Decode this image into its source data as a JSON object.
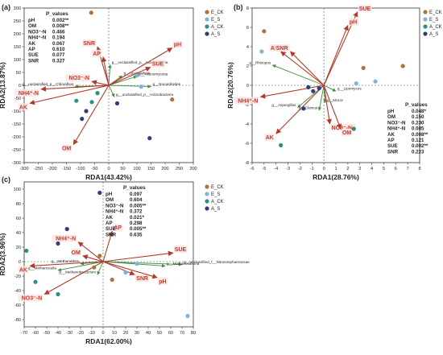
{
  "legend_entries": [
    {
      "name": "E_CK",
      "color": "#b0743a"
    },
    {
      "name": "E_S",
      "color": "#7fb3dc"
    },
    {
      "name": "A_CK",
      "color": "#2f8f83"
    },
    {
      "name": "A_S",
      "color": "#2e3f7a"
    }
  ],
  "colors": {
    "env_arrow": "#b23a2a",
    "taxa_arrow": "#3f8f3f",
    "env_label_bg": "#fde3e3"
  },
  "chart_data": [
    {
      "type": "scatter",
      "panel_label": "(a)",
      "xlabel": "RDA1(43.42%)",
      "ylabel": "RDA2(13.87%)",
      "xlim": [
        -300,
        300
      ],
      "ylim": [
        -300,
        300
      ],
      "xticks": [
        -300,
        -250,
        -200,
        -150,
        -100,
        -50,
        0,
        50,
        100,
        150,
        200,
        250,
        300
      ],
      "yticks": [
        -300,
        -250,
        -200,
        -150,
        -100,
        -50,
        0,
        50,
        100,
        150,
        200,
        250,
        300
      ],
      "table_header": "P_values",
      "table": [
        {
          "var": "pH",
          "p": "0.002**"
        },
        {
          "var": "OM",
          "p": "0.008**"
        },
        {
          "var": "NO3⁻-N",
          "p": "0.466"
        },
        {
          "var": "NH4⁺-N",
          "p": "0.194"
        },
        {
          "var": "AK",
          "p": "0.067"
        },
        {
          "var": "AP",
          "p": "0.610"
        },
        {
          "var": "SUE",
          "p": "0.077"
        },
        {
          "var": "SNR",
          "p": "0.327"
        }
      ],
      "env": [
        {
          "label": "pH",
          "x": 225,
          "y": 145
        },
        {
          "label": "SUE",
          "x": 148,
          "y": 70
        },
        {
          "label": "SNR",
          "x": -40,
          "y": 150
        },
        {
          "label": "AP",
          "x": -20,
          "y": 110
        },
        {
          "label": "NO3⁻-N",
          "x": -60,
          "y": 15
        },
        {
          "label": "NH4⁺-N",
          "x": -240,
          "y": -15
        },
        {
          "label": "AK",
          "x": -280,
          "y": -70
        },
        {
          "label": "OM",
          "x": -125,
          "y": -230
        }
      ],
      "taxa": [
        {
          "label": "g__unclassified_p__Acidobacteria",
          "x": 5,
          "y": 80
        },
        {
          "label": "g__unclassified",
          "x": 48,
          "y": 37
        },
        {
          "label": "g__Actinomycetia",
          "x": 100,
          "y": 35
        },
        {
          "label": "g__unclassified_p__Chloroflexi",
          "x": -120,
          "y": -5
        },
        {
          "label": "g__Nocardioides",
          "x": 150,
          "y": -5
        },
        {
          "label": "g__unclassified_p__Actinobacteria",
          "x": 20,
          "y": -45
        }
      ],
      "points": [
        {
          "group": "E_CK",
          "x": -62,
          "y": 282
        },
        {
          "group": "E_CK",
          "x": 225,
          "y": -55
        },
        {
          "group": "E_S",
          "x": 100,
          "y": 38
        },
        {
          "group": "E_S",
          "x": 115,
          "y": -5
        },
        {
          "group": "A_CK",
          "x": -40,
          "y": -30
        },
        {
          "group": "A_CK",
          "x": -60,
          "y": -65
        },
        {
          "group": "A_CK",
          "x": -115,
          "y": -60
        },
        {
          "group": "A_S",
          "x": -80,
          "y": -100
        },
        {
          "group": "A_S",
          "x": -95,
          "y": -130
        },
        {
          "group": "A_S",
          "x": 30,
          "y": -70
        },
        {
          "group": "A_S",
          "x": 145,
          "y": -205
        }
      ]
    },
    {
      "type": "scatter",
      "panel_label": "(b)",
      "xlabel": "RDA1(28.76%)",
      "ylabel": "RDA2(20.76%)",
      "xlim": [
        -6,
        8
      ],
      "ylim": [
        -8,
        8
      ],
      "xticks": [
        -6,
        -5,
        -4,
        -3,
        -2,
        -1,
        0,
        1,
        2,
        3,
        4,
        5,
        6,
        7,
        8
      ],
      "yticks": [
        -8,
        -6,
        -4,
        -2,
        0,
        2,
        4,
        6,
        8
      ],
      "table_header": "P_values",
      "table": [
        {
          "var": "pH",
          "p": "0.048*"
        },
        {
          "var": "OM",
          "p": "0.150"
        },
        {
          "var": "NO3⁻-N",
          "p": "0.230"
        },
        {
          "var": "NH4⁺-N",
          "p": "0.085"
        },
        {
          "var": "AK",
          "p": "0.008**"
        },
        {
          "var": "AP",
          "p": "0.121"
        },
        {
          "var": "SUE",
          "p": "0.002**"
        },
        {
          "var": "SNR",
          "p": "0.223"
        }
      ],
      "env": [
        {
          "label": "SUE",
          "x": 2.8,
          "y": 7.6
        },
        {
          "label": "pH",
          "x": 2.0,
          "y": 6.2
        },
        {
          "label": "AP",
          "x": -3.6,
          "y": 3.5
        },
        {
          "label": "SNR",
          "x": -2.8,
          "y": 3.5
        },
        {
          "label": "NH4⁺-N",
          "x": -5.3,
          "y": -1.2
        },
        {
          "label": "AK",
          "x": -4.0,
          "y": -5.0
        },
        {
          "label": "NO3⁻-N",
          "x": 0.5,
          "y": -4.0
        },
        {
          "label": "OM",
          "x": 1.4,
          "y": -4.5
        }
      ],
      "taxa": [
        {
          "label": "g__Rhizopus",
          "x": -4.3,
          "y": 2.1
        },
        {
          "label": "g__Lipomyces",
          "x": 1.0,
          "y": -0.6
        },
        {
          "label": "g__Mucor",
          "x": 0.1,
          "y": -1.8
        },
        {
          "label": "g__Glomus",
          "x": -0.4,
          "y": -2.6
        },
        {
          "label": "g__Aspergillus",
          "x": -2.2,
          "y": -2.3
        }
      ],
      "points": [
        {
          "group": "E_CK",
          "x": -5.0,
          "y": 5.6
        },
        {
          "group": "E_CK",
          "x": 3.3,
          "y": 1.8
        },
        {
          "group": "E_CK",
          "x": 6.6,
          "y": 2.0
        },
        {
          "group": "E_S",
          "x": -5.2,
          "y": 3.5
        },
        {
          "group": "E_S",
          "x": 4.3,
          "y": 0.4
        },
        {
          "group": "E_S",
          "x": 2.7,
          "y": 0.2
        },
        {
          "group": "A_CK",
          "x": -3.6,
          "y": -6.2
        },
        {
          "group": "A_CK",
          "x": 2.5,
          "y": -4.5
        },
        {
          "group": "A_S",
          "x": -0.9,
          "y": -0.6
        },
        {
          "group": "A_S",
          "x": -1.3,
          "y": -0.2
        },
        {
          "group": "A_S",
          "x": -0.4,
          "y": -0.3
        },
        {
          "group": "A_S",
          "x": -1.7,
          "y": -2.4
        }
      ]
    },
    {
      "type": "scatter",
      "panel_label": "(c)",
      "xlabel": "RDA1(62.00%)",
      "ylabel": "RDA2(3.96%)",
      "xlim": [
        -70,
        80
      ],
      "ylim": [
        -90,
        110
      ],
      "xticks": [
        -70,
        -60,
        -50,
        -40,
        -30,
        -20,
        -10,
        0,
        10,
        20,
        30,
        40,
        50,
        60,
        70,
        80
      ],
      "yticks": [
        -80,
        -60,
        -40,
        -20,
        0,
        20,
        40,
        60,
        80,
        100
      ],
      "table_header": "P_values",
      "table": [
        {
          "var": "pH",
          "p": "0.097"
        },
        {
          "var": "OM",
          "p": "0.604"
        },
        {
          "var": "NO3⁻-N",
          "p": "0.005**"
        },
        {
          "var": "NH4⁺-N",
          "p": "0.372"
        },
        {
          "var": "AK",
          "p": "0.021*"
        },
        {
          "var": "AP",
          "p": "0.298"
        },
        {
          "var": "SUE",
          "p": "0.005**"
        },
        {
          "var": "SNR",
          "p": "0.635"
        }
      ],
      "env": [
        {
          "label": "AP",
          "x": 8,
          "y": 42
        },
        {
          "label": "NH4⁺-N",
          "x": -22,
          "y": 27
        },
        {
          "label": "SUE",
          "x": 62,
          "y": 12
        },
        {
          "label": "OM",
          "x": -18,
          "y": 8
        },
        {
          "label": "AK",
          "x": -65,
          "y": -6
        },
        {
          "label": "SNR",
          "x": 28,
          "y": -18
        },
        {
          "label": "pH",
          "x": 48,
          "y": -22
        },
        {
          "label": "NO3⁻-N",
          "x": -52,
          "y": -45
        }
      ],
      "taxa": [
        {
          "label": "g__unclassified_f__Nitrososphaeraceae",
          "x": 70,
          "y": -4
        },
        {
          "label": "g__Methanothrix",
          "x": -20,
          "y": -3
        },
        {
          "label": "g__Methanosarcina",
          "x": 55,
          "y": -6
        },
        {
          "label": "g__Methanocella",
          "x": -40,
          "y": -12
        },
        {
          "label": "g__Methanobacterium",
          "x": -5,
          "y": -18
        }
      ],
      "points": [
        {
          "group": "E_CK",
          "x": -3,
          "y": 8
        },
        {
          "group": "E_CK",
          "x": -8,
          "y": -8
        },
        {
          "group": "E_CK",
          "x": 8,
          "y": -25
        },
        {
          "group": "E_S",
          "x": 30,
          "y": -3
        },
        {
          "group": "E_S",
          "x": 20,
          "y": -15
        },
        {
          "group": "E_S",
          "x": 75,
          "y": -75
        },
        {
          "group": "A_CK",
          "x": -68,
          "y": 15
        },
        {
          "group": "A_CK",
          "x": -60,
          "y": -28
        },
        {
          "group": "A_CK",
          "x": -40,
          "y": -45
        },
        {
          "group": "A_S",
          "x": -3,
          "y": 95
        },
        {
          "group": "A_S",
          "x": -32,
          "y": 45
        },
        {
          "group": "A_S",
          "x": -40,
          "y": 25
        }
      ]
    }
  ]
}
